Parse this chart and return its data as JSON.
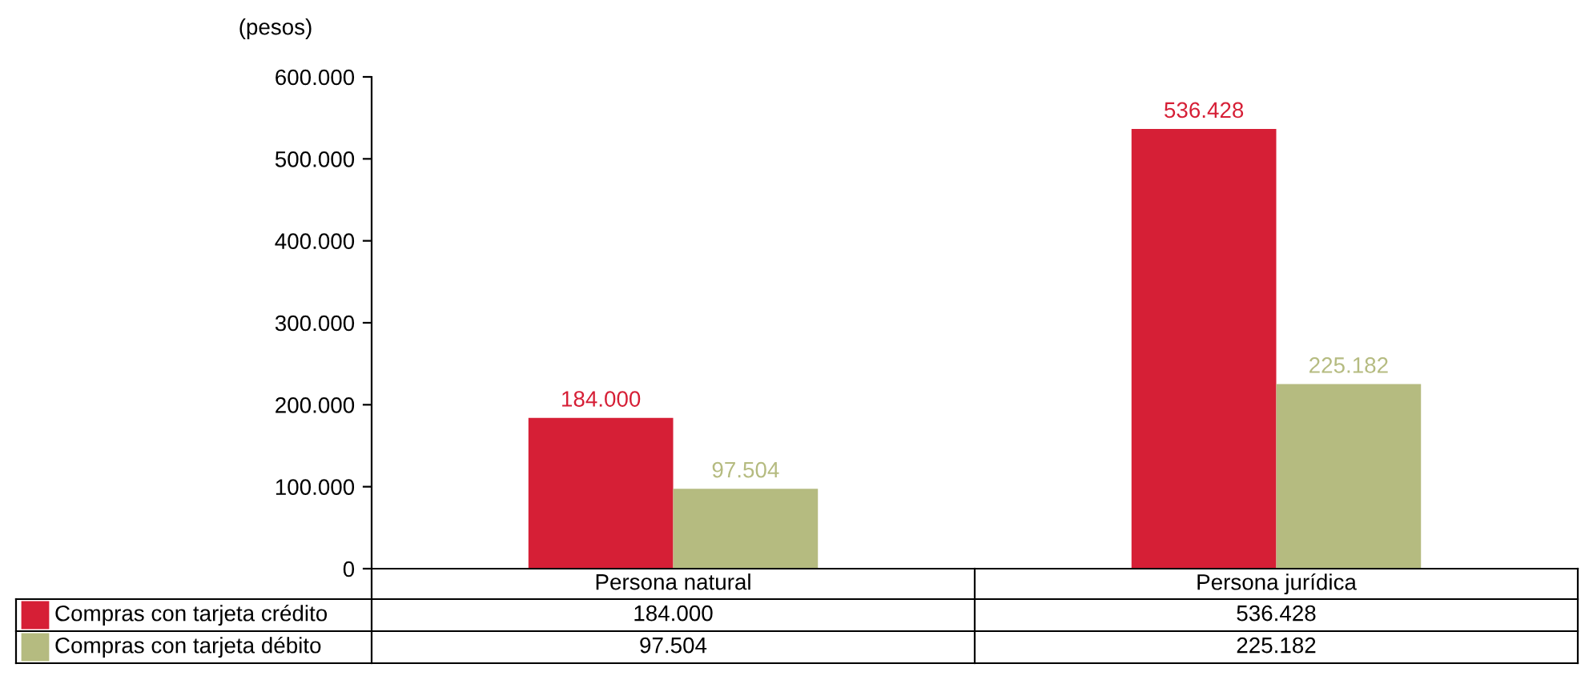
{
  "chart_data": {
    "type": "bar",
    "ylabel": "(pesos)",
    "categories": [
      "Persona natural",
      "Persona jurídica"
    ],
    "series": [
      {
        "name": "Compras con tarjeta crédito",
        "color": "#d61f36",
        "values": [
          184000,
          536428
        ],
        "value_labels": [
          "184.000",
          "536.428"
        ]
      },
      {
        "name": "Compras con tarjeta débito",
        "color": "#b5bb80",
        "values": [
          97504,
          225182
        ],
        "value_labels": [
          "97.504",
          "225.182"
        ]
      }
    ],
    "ylim": [
      0,
      600000
    ],
    "yticks": [
      {
        "value": 0,
        "label": "0"
      },
      {
        "value": 100000,
        "label": "100.000"
      },
      {
        "value": 200000,
        "label": "200.000"
      },
      {
        "value": 300000,
        "label": "300.000"
      },
      {
        "value": 400000,
        "label": "400.000"
      },
      {
        "value": 500000,
        "label": "500.000"
      },
      {
        "value": 600000,
        "label": "600.000"
      }
    ],
    "grid": false,
    "legend": "bottom"
  }
}
